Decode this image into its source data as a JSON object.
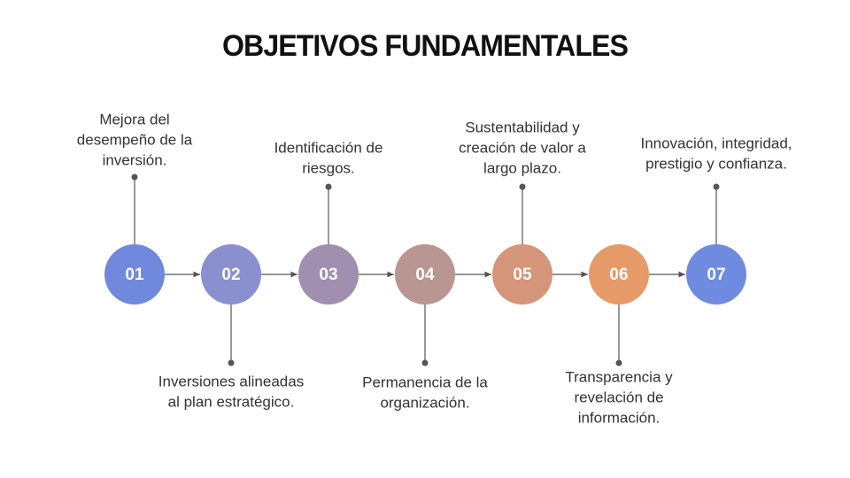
{
  "header": {
    "title": "OBJETIVOS FUNDAMENTALES"
  },
  "nodes": [
    {
      "number": "01",
      "lines": [
        "Mejora del",
        "desempeño de la",
        "inversión."
      ]
    },
    {
      "number": "02",
      "lines": [
        "Inversiones alineadas",
        "al plan estratégico."
      ]
    },
    {
      "number": "03",
      "lines": [
        "Identificación de",
        "riesgos."
      ]
    },
    {
      "number": "04",
      "lines": [
        "Permanencia de la",
        "organización."
      ]
    },
    {
      "number": "05",
      "lines": [
        "Sustentabilidad y",
        "creación de valor a",
        "largo plazo."
      ]
    },
    {
      "number": "06",
      "lines": [
        "Transparencia y",
        "revelación de",
        "información."
      ]
    },
    {
      "number": "07",
      "lines": [
        "Innovación, integridad,",
        "prestigio y confianza."
      ]
    }
  ]
}
